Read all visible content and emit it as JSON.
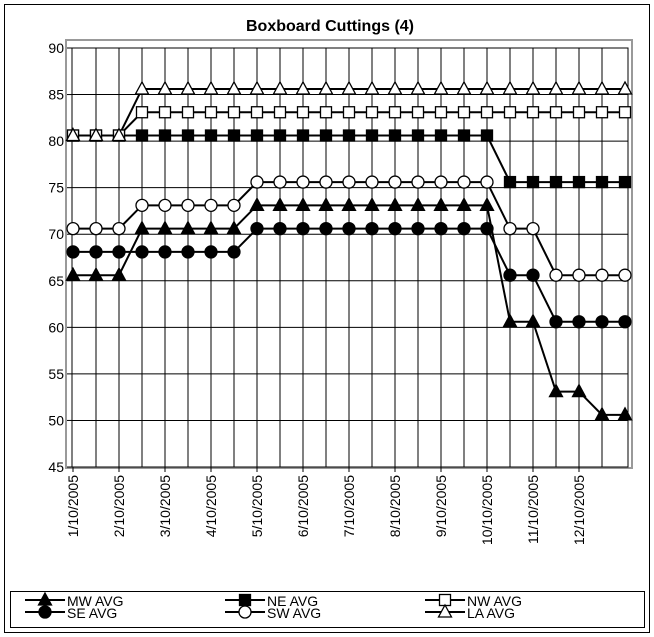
{
  "chart_data": {
    "type": "line",
    "title": "Boxboard  Cuttings (4)",
    "categories": [
      "1/10/2005",
      null,
      "2/10/2005",
      null,
      "3/10/2005",
      null,
      "4/10/2005",
      null,
      "5/10/2005",
      null,
      "6/10/2005",
      null,
      "7/10/2005",
      null,
      "8/10/2005",
      null,
      "9/10/2005",
      null,
      "10/10/2005",
      null,
      "11/10/2005",
      null,
      "12/10/2005",
      null,
      null
    ],
    "ylim": [
      45,
      90
    ],
    "yticks": [
      45,
      50,
      55,
      60,
      65,
      70,
      75,
      80,
      85,
      90
    ],
    "grid": true,
    "legend": "bottom",
    "series": [
      {
        "name": "MW AVG",
        "color": "#000000",
        "marker": "triangle",
        "filled": true,
        "values": [
          65.6,
          65.6,
          65.6,
          70.6,
          70.6,
          70.6,
          70.6,
          70.6,
          73.1,
          73.1,
          73.1,
          73.1,
          73.1,
          73.1,
          73.1,
          73.1,
          73.1,
          73.1,
          73.1,
          60.6,
          60.6,
          53.1,
          53.1,
          50.6,
          50.6
        ]
      },
      {
        "name": "NE AVG",
        "color": "#000000",
        "marker": "square",
        "filled": true,
        "values": [
          80.6,
          80.6,
          80.6,
          80.6,
          80.6,
          80.6,
          80.6,
          80.6,
          80.6,
          80.6,
          80.6,
          80.6,
          80.6,
          80.6,
          80.6,
          80.6,
          80.6,
          80.6,
          80.6,
          75.6,
          75.6,
          75.6,
          75.6,
          75.6,
          75.6
        ]
      },
      {
        "name": "NW AVG",
        "color": "#000000",
        "marker": "square",
        "filled": false,
        "values": [
          80.6,
          80.6,
          80.6,
          83.1,
          83.1,
          83.1,
          83.1,
          83.1,
          83.1,
          83.1,
          83.1,
          83.1,
          83.1,
          83.1,
          83.1,
          83.1,
          83.1,
          83.1,
          83.1,
          83.1,
          83.1,
          83.1,
          83.1,
          83.1,
          83.1
        ]
      },
      {
        "name": "SE AVG",
        "color": "#000000",
        "marker": "circle",
        "filled": true,
        "values": [
          68.1,
          68.1,
          68.1,
          68.1,
          68.1,
          68.1,
          68.1,
          68.1,
          70.6,
          70.6,
          70.6,
          70.6,
          70.6,
          70.6,
          70.6,
          70.6,
          70.6,
          70.6,
          70.6,
          65.6,
          65.6,
          60.6,
          60.6,
          60.6,
          60.6
        ]
      },
      {
        "name": "SW AVG",
        "color": "#000000",
        "marker": "circle",
        "filled": false,
        "values": [
          70.6,
          70.6,
          70.6,
          73.1,
          73.1,
          73.1,
          73.1,
          73.1,
          75.6,
          75.6,
          75.6,
          75.6,
          75.6,
          75.6,
          75.6,
          75.6,
          75.6,
          75.6,
          75.6,
          70.6,
          70.6,
          65.6,
          65.6,
          65.6,
          65.6
        ]
      },
      {
        "name": "LA AVG",
        "color": "#000000",
        "marker": "triangle",
        "filled": false,
        "values": [
          80.6,
          80.6,
          80.6,
          85.6,
          85.6,
          85.6,
          85.6,
          85.6,
          85.6,
          85.6,
          85.6,
          85.6,
          85.6,
          85.6,
          85.6,
          85.6,
          85.6,
          85.6,
          85.6,
          85.6,
          85.6,
          85.6,
          85.6,
          85.6,
          85.6
        ]
      }
    ]
  }
}
